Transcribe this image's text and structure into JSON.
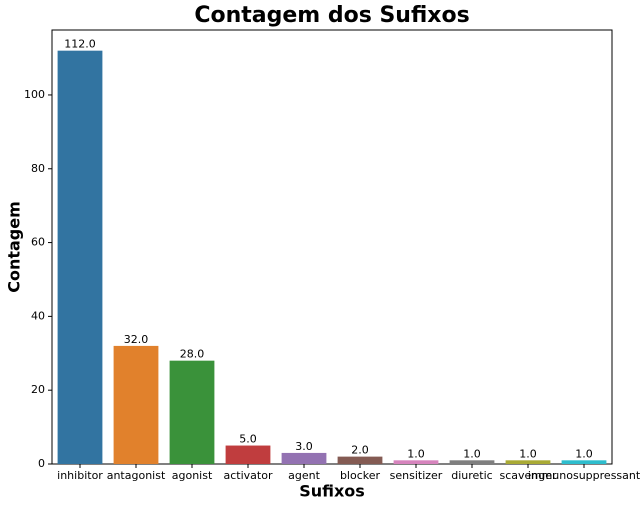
{
  "chart_data": {
    "type": "bar",
    "title": "Contagem dos Sufixos",
    "x_label": "Sufixos",
    "y_label": "Contagem",
    "categories": [
      "inhibitor",
      "antagonist",
      "agonist",
      "activator",
      "agent",
      "blocker",
      "sensitizer",
      "diuretic",
      "scavenger",
      "immunosuppressant"
    ],
    "values": [
      112,
      32,
      28,
      5,
      3,
      2,
      1,
      1,
      1,
      1
    ],
    "value_labels": [
      "112.0",
      "32.0",
      "28.0",
      "5.0",
      "3.0",
      "2.0",
      "1.0",
      "1.0",
      "1.0",
      "1.0"
    ],
    "colors": [
      "#3274a1",
      "#e1812c",
      "#3a923a",
      "#c03d3e",
      "#9372b2",
      "#845b53",
      "#d684bd",
      "#7f7f7f",
      "#a9aa35",
      "#2ebdcd"
    ],
    "ylim": [
      0,
      117.6
    ],
    "yticks": [
      0,
      20,
      40,
      60,
      80,
      100
    ],
    "grid": false
  }
}
